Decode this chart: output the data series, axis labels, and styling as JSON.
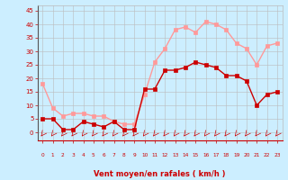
{
  "hours": [
    0,
    1,
    2,
    3,
    4,
    5,
    6,
    7,
    8,
    9,
    10,
    11,
    12,
    13,
    14,
    15,
    16,
    17,
    18,
    19,
    20,
    21,
    22,
    23
  ],
  "wind_avg": [
    5,
    5,
    1,
    1,
    4,
    3,
    2,
    4,
    1,
    1,
    16,
    16,
    23,
    23,
    24,
    26,
    25,
    24,
    21,
    21,
    19,
    10,
    14,
    15
  ],
  "wind_gust": [
    18,
    9,
    6,
    7,
    7,
    6,
    6,
    4,
    3,
    3,
    14,
    26,
    31,
    38,
    39,
    37,
    41,
    40,
    38,
    33,
    31,
    25,
    32,
    33
  ],
  "color_avg": "#cc0000",
  "color_gust": "#ff9999",
  "bg_color": "#cceeff",
  "grid_color": "#bbbbbb",
  "xlabel": "Vent moyen/en rafales ( km/h )",
  "xlabel_color": "#cc0000",
  "yticks": [
    0,
    5,
    10,
    15,
    20,
    25,
    30,
    35,
    40,
    45
  ],
  "ylim": [
    -3,
    47
  ],
  "xlim": [
    -0.5,
    23.5
  ],
  "tick_color": "#cc0000",
  "markersize": 2.5,
  "linewidth": 1.0
}
